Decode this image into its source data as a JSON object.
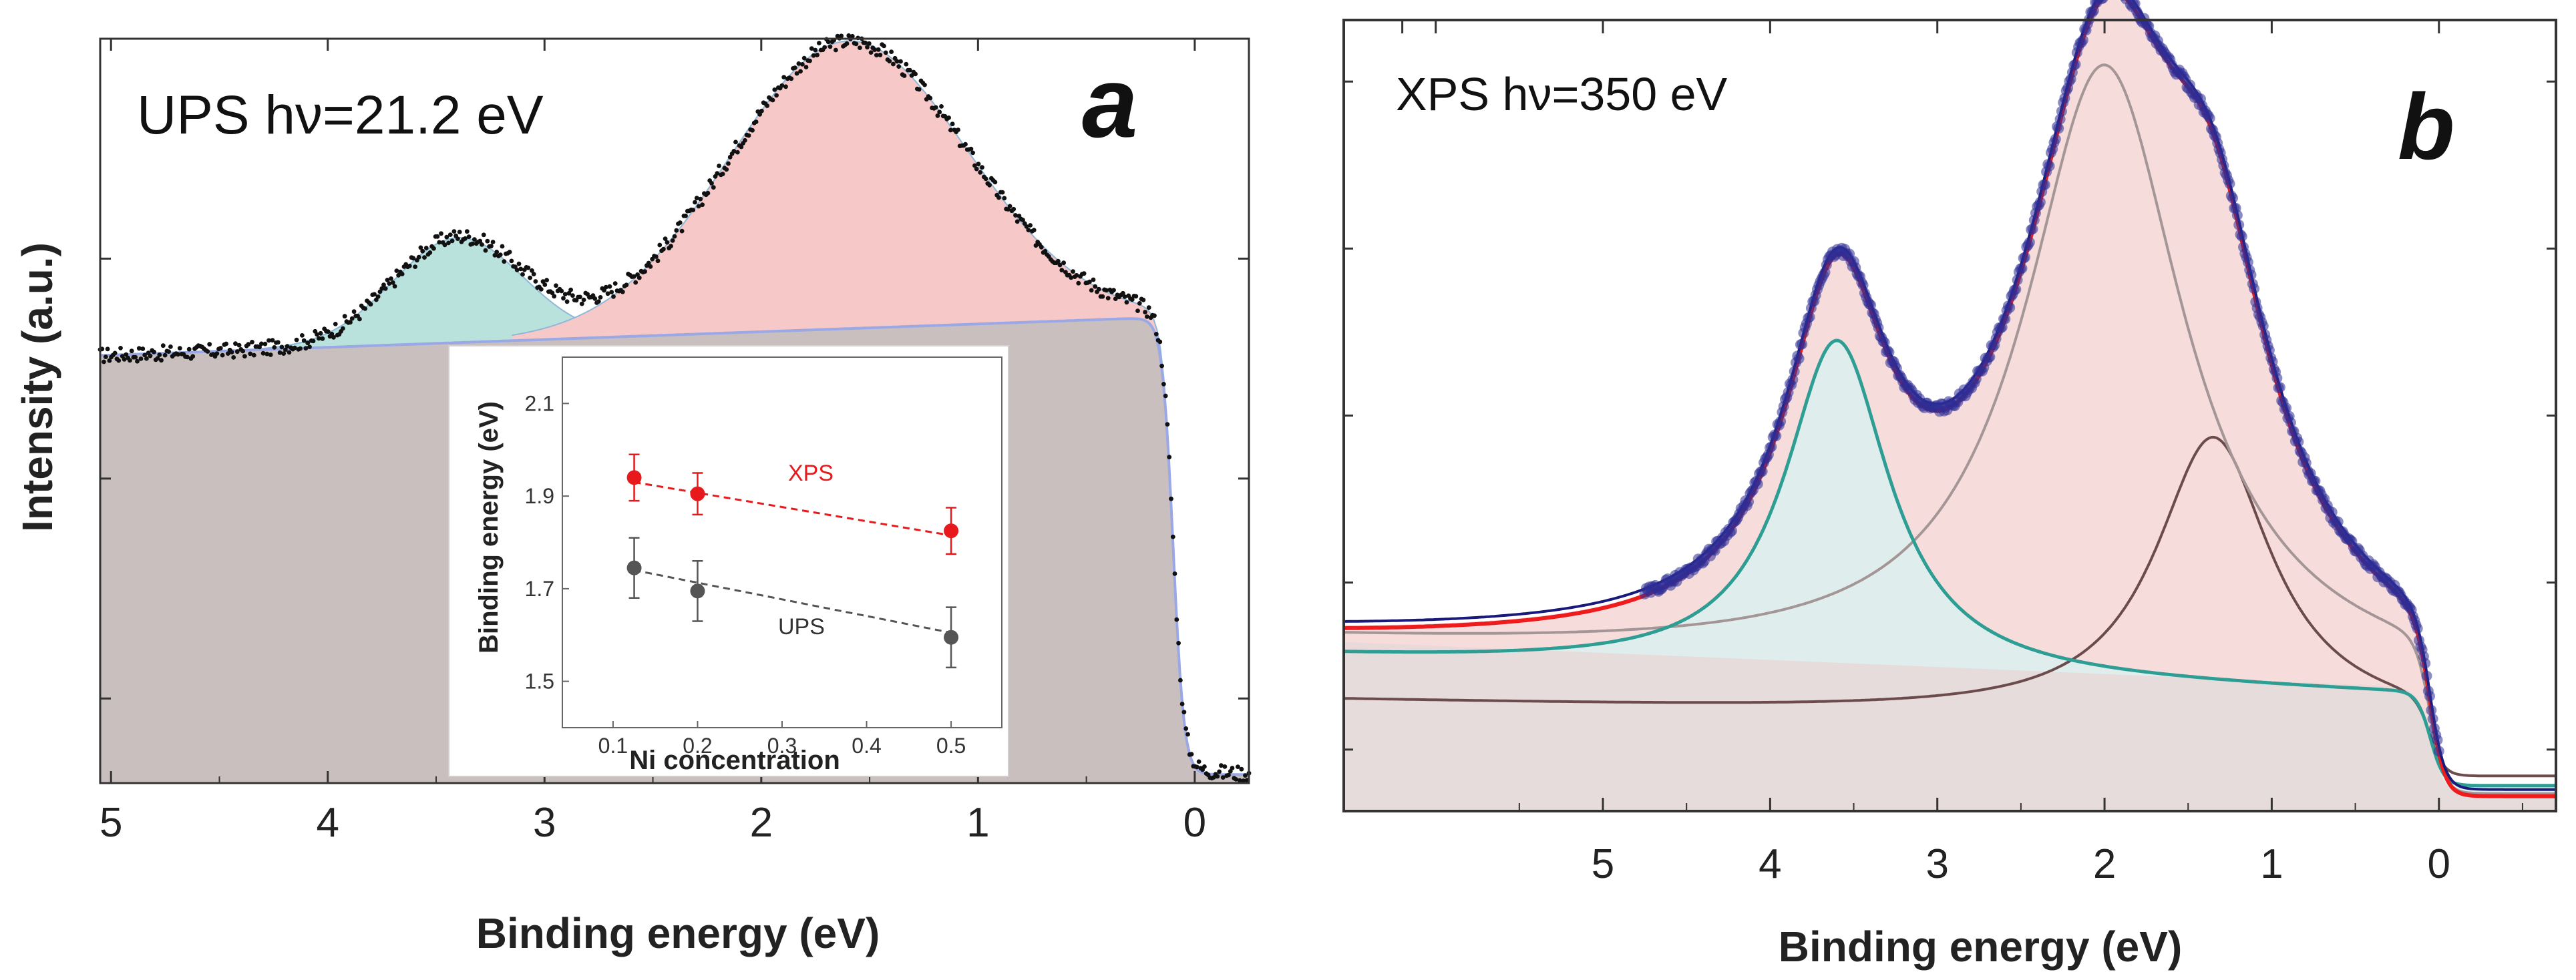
{
  "chart_data": [
    {
      "id": "a",
      "type": "line",
      "panel_label": "a",
      "annotation": "UPS  hν=21.2 eV",
      "title": "",
      "xlabel": "Binding energy (eV)",
      "ylabel": "Intensity (a.u.)",
      "xlim": [
        5.05,
        -0.25
      ],
      "ylim": [
        0,
        4.4
      ],
      "x_ticks": [
        5,
        4,
        3,
        2,
        1,
        0
      ],
      "x_tick_labels": [
        "5",
        "4",
        "3",
        "2",
        "1",
        "0"
      ],
      "grid": false,
      "series": [
        {
          "name": "background",
          "kind": "filled-area",
          "color": "#c9bfbf",
          "line_color": "#9aa8e6"
        },
        {
          "name": "peak ~3.4 eV",
          "kind": "filled-peak",
          "center": 3.4,
          "amplitude": 0.62,
          "width": 0.3,
          "color": "#b9e2dc"
        },
        {
          "name": "peak ~1.6 eV",
          "kind": "filled-peak",
          "center": 1.6,
          "amplitude": 1.7,
          "width": 0.55,
          "color": "#f6c9c8"
        },
        {
          "name": "data",
          "kind": "scatter",
          "color": "#111111"
        }
      ]
    },
    {
      "id": "a-inset",
      "type": "scatter",
      "title": "",
      "xlabel": "Ni concentration",
      "ylabel": "Binding energy (eV)",
      "xlim": [
        0.04,
        0.56
      ],
      "ylim": [
        1.4,
        2.2
      ],
      "x_ticks": [
        0.1,
        0.2,
        0.3,
        0.4,
        0.5
      ],
      "x_tick_labels": [
        "0.1",
        "0.2",
        "0.3",
        "0.4",
        "0.5"
      ],
      "y_ticks": [
        1.5,
        1.7,
        1.9,
        2.1
      ],
      "y_tick_labels": [
        "1.5",
        "1.7",
        "1.9",
        "2.1"
      ],
      "grid": false,
      "series": [
        {
          "name": "XPS",
          "color": "#e8191c",
          "x": [
            0.125,
            0.2,
            0.5
          ],
          "y": [
            1.94,
            1.905,
            1.825
          ],
          "err": [
            0.05,
            0.045,
            0.05
          ],
          "fit_y": [
            1.93,
            1.815
          ]
        },
        {
          "name": "UPS",
          "color": "#555555",
          "x": [
            0.125,
            0.2,
            0.5
          ],
          "y": [
            1.745,
            1.695,
            1.595
          ],
          "err": [
            0.065,
            0.065,
            0.065
          ],
          "fit_y": [
            1.74,
            1.605
          ]
        }
      ]
    },
    {
      "id": "b",
      "type": "line",
      "panel_label": "b",
      "annotation": "XPS   hν=350 eV",
      "title": "",
      "xlabel": "Binding energy (eV)",
      "ylabel": "",
      "xlim": [
        6.55,
        -0.7
      ],
      "ylim": [
        0,
        4.5
      ],
      "x_ticks": [
        5,
        4,
        3,
        2,
        1,
        0
      ],
      "x_tick_labels": [
        "5",
        "4",
        "3",
        "2",
        "1",
        "0"
      ],
      "grid": false,
      "series": [
        {
          "name": "background",
          "kind": "filled-area",
          "color": "#e8d8d8"
        },
        {
          "name": "peak ~3.6 eV",
          "kind": "filled-peak",
          "center": 3.6,
          "amplitude": 1.9,
          "width": 0.38,
          "color": "#2e9d93"
        },
        {
          "name": "peak ~2.0 eV",
          "kind": "peak",
          "center": 2.0,
          "amplitude": 3.3,
          "width": 0.58,
          "color": "#a49696"
        },
        {
          "name": "peak ~1.35 eV",
          "kind": "peak",
          "center": 1.35,
          "amplitude": 1.6,
          "width": 0.42,
          "color": "#6b4b4b"
        },
        {
          "name": "envelope",
          "kind": "filled-peak",
          "color": "#ee1c1c",
          "fill": "#f7dcdc"
        },
        {
          "name": "data",
          "kind": "scatter",
          "color": "#2e2e96"
        }
      ]
    }
  ]
}
